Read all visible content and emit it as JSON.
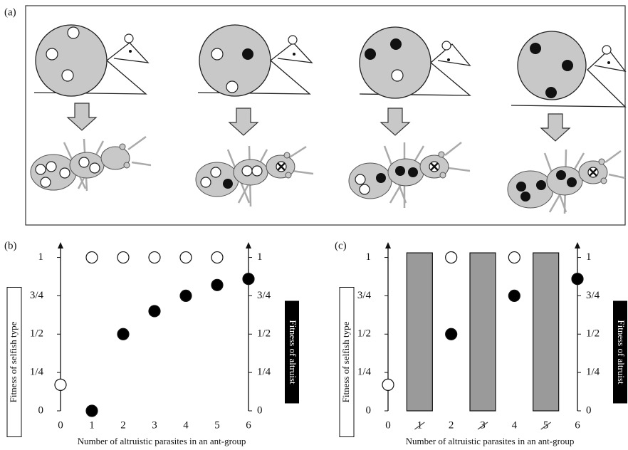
{
  "panel_a": {
    "label": "(a)"
  },
  "chart_data": [
    {
      "type": "scatter",
      "panel_label": "(b)",
      "xlabel": "Number of altruistic parasites in an ant-group",
      "ylabel": "Fitness of selfish type",
      "y2label": "Fitness of altruist",
      "x": [
        0,
        1,
        2,
        3,
        4,
        5,
        6
      ],
      "xlim": [
        0,
        6
      ],
      "xticks": [
        0,
        1,
        2,
        3,
        4,
        5,
        6
      ],
      "ylim": [
        0,
        1.1
      ],
      "yticks": [
        0,
        {
          "value": 0.25,
          "label": "1/4"
        },
        {
          "value": 0.5,
          "label": "1/2"
        },
        {
          "value": 0.75,
          "label": "3/4"
        },
        1
      ],
      "y2lim": [
        0,
        1.1
      ],
      "y2ticks": [
        0,
        {
          "value": 0.25,
          "label": "1/4"
        },
        {
          "value": 0.5,
          "label": "1/2"
        },
        {
          "value": 0.75,
          "label": "3/4"
        },
        1
      ],
      "series": [
        {
          "color": "#ffffff",
          "values": [
            0.17,
            1,
            1,
            1,
            1,
            1,
            null
          ]
        },
        {
          "color": "#000000",
          "axis": "y2",
          "values": [
            null,
            0,
            0.5,
            0.65,
            0.75,
            0.82,
            0.86
          ]
        }
      ]
    },
    {
      "type": "scatter",
      "panel_label": "(c)",
      "xlabel": "Number of altruistic parasites in an ant-group",
      "ylabel": "Fitness of selfish type",
      "y2label": "Fitness of altruist",
      "x": [
        0,
        1,
        2,
        3,
        4,
        5,
        6
      ],
      "xlim": [
        0,
        6
      ],
      "xticks": [
        0,
        1,
        2,
        3,
        4,
        5,
        6
      ],
      "ylim": [
        0,
        1.1
      ],
      "yticks": [
        0,
        {
          "value": 0.25,
          "label": "1/4"
        },
        {
          "value": 0.5,
          "label": "1/2"
        },
        {
          "value": 0.75,
          "label": "3/4"
        },
        1
      ],
      "y2lim": [
        0,
        1.1
      ],
      "y2ticks": [
        0,
        {
          "value": 0.25,
          "label": "1/4"
        },
        {
          "value": 0.5,
          "label": "1/2"
        },
        {
          "value": 0.75,
          "label": "3/4"
        },
        1
      ],
      "shaded_bars": {
        "x": [
          1,
          3,
          5
        ],
        "values": [
          1.03,
          1.03,
          1.03
        ],
        "color": "#9a9a9a"
      },
      "series": [
        {
          "color": "#ffffff",
          "values": [
            0.17,
            null,
            1,
            null,
            1,
            null,
            null
          ]
        },
        {
          "color": "#000000",
          "axis": "y2",
          "values": [
            null,
            null,
            0.5,
            null,
            0.75,
            null,
            0.86
          ]
        }
      ]
    }
  ]
}
